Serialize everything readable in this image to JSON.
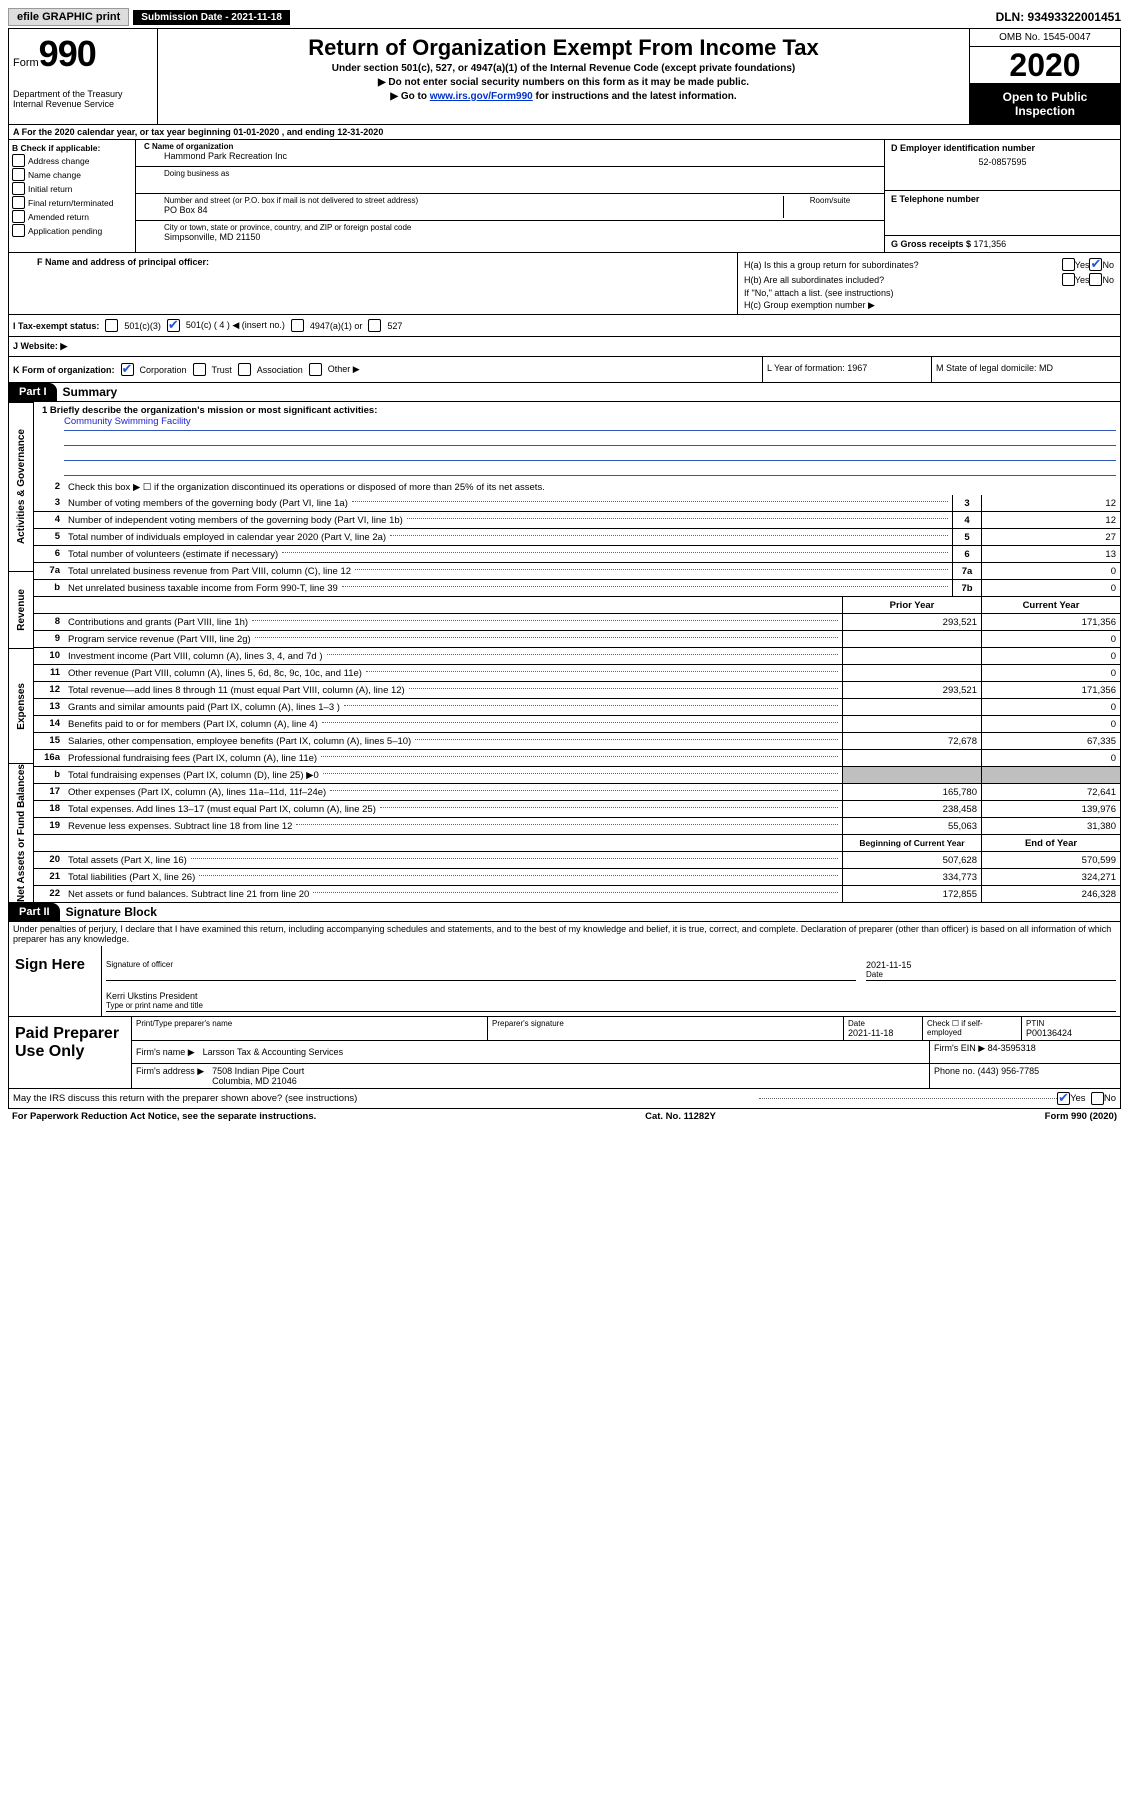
{
  "topbar": {
    "efile": "efile GRAPHIC print",
    "submission": "Submission Date - 2021-11-18",
    "dln": "DLN: 93493322001451"
  },
  "header": {
    "form_label": "Form",
    "form_number": "990",
    "dept": "Department of the Treasury",
    "irs": "Internal Revenue Service",
    "title": "Return of Organization Exempt From Income Tax",
    "subtitle": "Under section 501(c), 527, or 4947(a)(1) of the Internal Revenue Code (except private foundations)",
    "line1": "▶ Do not enter social security numbers on this form as it may be made public.",
    "line2_pre": "▶ Go to ",
    "line2_link": "www.irs.gov/Form990",
    "line2_post": " for instructions and the latest information.",
    "omb": "OMB No. 1545-0047",
    "year": "2020",
    "open": "Open to Public Inspection"
  },
  "row_a": "A For the 2020 calendar year, or tax year beginning 01-01-2020    , and ending 12-31-2020",
  "col_b": {
    "heading": "B Check if applicable:",
    "items": [
      "Address change",
      "Name change",
      "Initial return",
      "Final return/terminated",
      "Amended return",
      "Application pending"
    ]
  },
  "col_c": {
    "name_label": "C Name of organization",
    "name": "Hammond Park Recreation Inc",
    "dba_label": "Doing business as",
    "street_label": "Number and street (or P.O. box if mail is not delivered to street address)",
    "street": "PO Box 84",
    "room_label": "Room/suite",
    "city_label": "City or town, state or province, country, and ZIP or foreign postal code",
    "city": "Simpsonville, MD  21150"
  },
  "col_d": {
    "ein_label": "D Employer identification number",
    "ein": "52-0857595",
    "phone_label": "E Telephone number",
    "gross_label": "G Gross receipts $ ",
    "gross": "171,356"
  },
  "section_f": {
    "label": "F  Name and address of principal officer:"
  },
  "section_h": {
    "ha": "H(a)  Is this a group return for subordinates?",
    "hb": "H(b)  Are all subordinates included?",
    "hb_note": "If \"No,\" attach a list. (see instructions)",
    "hc": "H(c)  Group exemption number ▶"
  },
  "tax_status": {
    "label": "I   Tax-exempt status:",
    "opts": [
      "501(c)(3)",
      "501(c) ( 4 ) ◀ (insert no.)",
      "4947(a)(1) or",
      "527"
    ]
  },
  "website": "J   Website: ▶",
  "k_row": {
    "label": "K Form of organization:",
    "opts": [
      "Corporation",
      "Trust",
      "Association",
      "Other ▶"
    ],
    "l": "L Year of formation: 1967",
    "m": "M State of legal domicile: MD"
  },
  "part1": {
    "tab": "Part I",
    "title": "Summary"
  },
  "mission": {
    "q": "1  Briefly describe the organization's mission or most significant activities:",
    "a": "Community Swimming Facility"
  },
  "vtabs": [
    "Activities & Governance",
    "Revenue",
    "Expenses",
    "Net Assets or Fund Balances"
  ],
  "gov_lines": {
    "l2": "Check this box ▶ ☐  if the organization discontinued its operations or disposed of more than 25% of its net assets.",
    "rows": [
      {
        "n": "3",
        "d": "Number of voting members of the governing body (Part VI, line 1a)",
        "box": "3",
        "v": "12"
      },
      {
        "n": "4",
        "d": "Number of independent voting members of the governing body (Part VI, line 1b)",
        "box": "4",
        "v": "12"
      },
      {
        "n": "5",
        "d": "Total number of individuals employed in calendar year 2020 (Part V, line 2a)",
        "box": "5",
        "v": "27"
      },
      {
        "n": "6",
        "d": "Total number of volunteers (estimate if necessary)",
        "box": "6",
        "v": "13"
      },
      {
        "n": "7a",
        "d": "Total unrelated business revenue from Part VIII, column (C), line 12",
        "box": "7a",
        "v": "0"
      },
      {
        "n": "b",
        "d": "Net unrelated business taxable income from Form 990-T, line 39",
        "box": "7b",
        "v": "0"
      }
    ]
  },
  "two_col_header": {
    "prior": "Prior Year",
    "current": "Current Year"
  },
  "revenue": [
    {
      "n": "8",
      "d": "Contributions and grants (Part VIII, line 1h)",
      "p": "293,521",
      "c": "171,356"
    },
    {
      "n": "9",
      "d": "Program service revenue (Part VIII, line 2g)",
      "p": "",
      "c": "0"
    },
    {
      "n": "10",
      "d": "Investment income (Part VIII, column (A), lines 3, 4, and 7d )",
      "p": "",
      "c": "0"
    },
    {
      "n": "11",
      "d": "Other revenue (Part VIII, column (A), lines 5, 6d, 8c, 9c, 10c, and 11e)",
      "p": "",
      "c": "0"
    },
    {
      "n": "12",
      "d": "Total revenue—add lines 8 through 11 (must equal Part VIII, column (A), line 12)",
      "p": "293,521",
      "c": "171,356"
    }
  ],
  "expenses": [
    {
      "n": "13",
      "d": "Grants and similar amounts paid (Part IX, column (A), lines 1–3 )",
      "p": "",
      "c": "0"
    },
    {
      "n": "14",
      "d": "Benefits paid to or for members (Part IX, column (A), line 4)",
      "p": "",
      "c": "0"
    },
    {
      "n": "15",
      "d": "Salaries, other compensation, employee benefits (Part IX, column (A), lines 5–10)",
      "p": "72,678",
      "c": "67,335"
    },
    {
      "n": "16a",
      "d": "Professional fundraising fees (Part IX, column (A), line 11e)",
      "p": "",
      "c": "0"
    },
    {
      "n": "b",
      "d": "Total fundraising expenses (Part IX, column (D), line 25) ▶0",
      "p": "SHADE",
      "c": "SHADE"
    },
    {
      "n": "17",
      "d": "Other expenses (Part IX, column (A), lines 11a–11d, 11f–24e)",
      "p": "165,780",
      "c": "72,641"
    },
    {
      "n": "18",
      "d": "Total expenses. Add lines 13–17 (must equal Part IX, column (A), line 25)",
      "p": "238,458",
      "c": "139,976"
    },
    {
      "n": "19",
      "d": "Revenue less expenses. Subtract line 18 from line 12",
      "p": "55,063",
      "c": "31,380"
    }
  ],
  "net_header": {
    "prior": "Beginning of Current Year",
    "current": "End of Year"
  },
  "netassets": [
    {
      "n": "20",
      "d": "Total assets (Part X, line 16)",
      "p": "507,628",
      "c": "570,599"
    },
    {
      "n": "21",
      "d": "Total liabilities (Part X, line 26)",
      "p": "334,773",
      "c": "324,271"
    },
    {
      "n": "22",
      "d": "Net assets or fund balances. Subtract line 21 from line 20",
      "p": "172,855",
      "c": "246,328"
    }
  ],
  "part2": {
    "tab": "Part II",
    "title": "Signature Block"
  },
  "perjury": "Under penalties of perjury, I declare that I have examined this return, including accompanying schedules and statements, and to the best of my knowledge and belief, it is true, correct, and complete. Declaration of preparer (other than officer) is based on all information of which preparer has any knowledge.",
  "sign": {
    "label": "Sign Here",
    "sig_of_officer": "Signature of officer",
    "date": "2021-11-15",
    "date_label": "Date",
    "name": "Kerri Ukstins  President",
    "name_label": "Type or print name and title"
  },
  "preparer": {
    "label": "Paid Preparer Use Only",
    "h1": "Print/Type preparer's name",
    "h2": "Preparer's signature",
    "h3": "Date",
    "h3v": "2021-11-18",
    "h4": "Check ☐ if self-employed",
    "h5": "PTIN",
    "h5v": "P00136424",
    "firm_label": "Firm's name    ▶",
    "firm": "Larsson Tax & Accounting Services",
    "ein_label": "Firm's EIN ▶",
    "ein": "84-3595318",
    "addr_label": "Firm's address ▶",
    "addr1": "7508 Indian Pipe Court",
    "addr2": "Columbia, MD  21046",
    "phone_label": "Phone no.",
    "phone": "(443) 956-7785"
  },
  "discuss": "May the IRS discuss this return with the preparer shown above? (see instructions)",
  "footer": {
    "left": "For Paperwork Reduction Act Notice, see the separate instructions.",
    "mid": "Cat. No. 11282Y",
    "right": "Form 990 (2020)"
  },
  "yes": "Yes",
  "no": "No"
}
